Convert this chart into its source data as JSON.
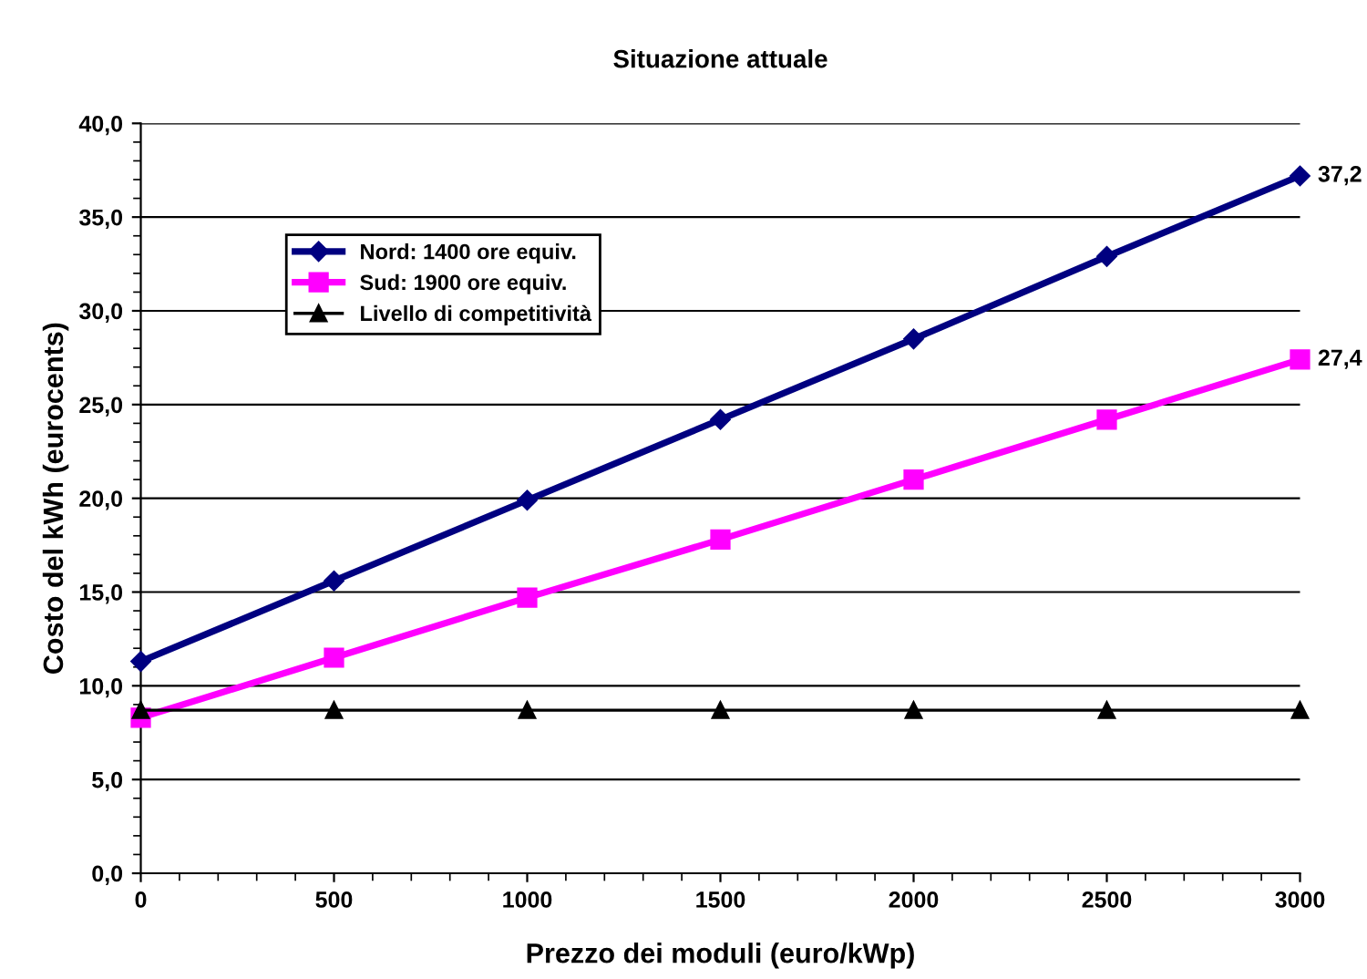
{
  "chart_data": {
    "type": "line",
    "title": "Situazione attuale",
    "xlabel": "Prezzo dei moduli (euro/kWp)",
    "ylabel": "Costo del kWh (eurocents)",
    "x": [
      0,
      500,
      1000,
      1500,
      2000,
      2500,
      3000
    ],
    "series": [
      {
        "name": "Nord: 1400 ore equiv.",
        "color": "#000080",
        "marker": "diamond",
        "values": [
          11.3,
          15.6,
          19.9,
          24.2,
          28.5,
          32.9,
          37.2
        ],
        "value_labels": [
          null,
          null,
          null,
          null,
          null,
          null,
          "37,2"
        ]
      },
      {
        "name": "Sud: 1900 ore equiv.",
        "color": "#ff00ff",
        "marker": "square",
        "values": [
          8.3,
          11.5,
          14.7,
          17.8,
          21.0,
          24.2,
          27.4
        ],
        "value_labels": [
          null,
          null,
          null,
          null,
          null,
          null,
          "27,4"
        ]
      },
      {
        "name": "Livello di competitività",
        "color": "#000000",
        "marker": "triangle",
        "values": [
          8.7,
          8.7,
          8.7,
          8.7,
          8.7,
          8.7,
          8.7
        ]
      }
    ],
    "xlim": [
      0,
      3000
    ],
    "xticks": [
      0,
      500,
      1000,
      1500,
      2000,
      2500,
      3000
    ],
    "ylim": [
      0,
      40
    ],
    "yticks": [
      {
        "value": 0,
        "label": "0,0"
      },
      {
        "value": 5,
        "label": "5,0"
      },
      {
        "value": 10,
        "label": "10,0"
      },
      {
        "value": 15,
        "label": "15,0"
      },
      {
        "value": 20,
        "label": "20,0"
      },
      {
        "value": 25,
        "label": "25,0"
      },
      {
        "value": 30,
        "label": "30,0"
      },
      {
        "value": 35,
        "label": "35,0"
      },
      {
        "value": 40,
        "label": "40,0"
      }
    ],
    "grid": "y",
    "legend": "top left",
    "line_style": "solid"
  }
}
